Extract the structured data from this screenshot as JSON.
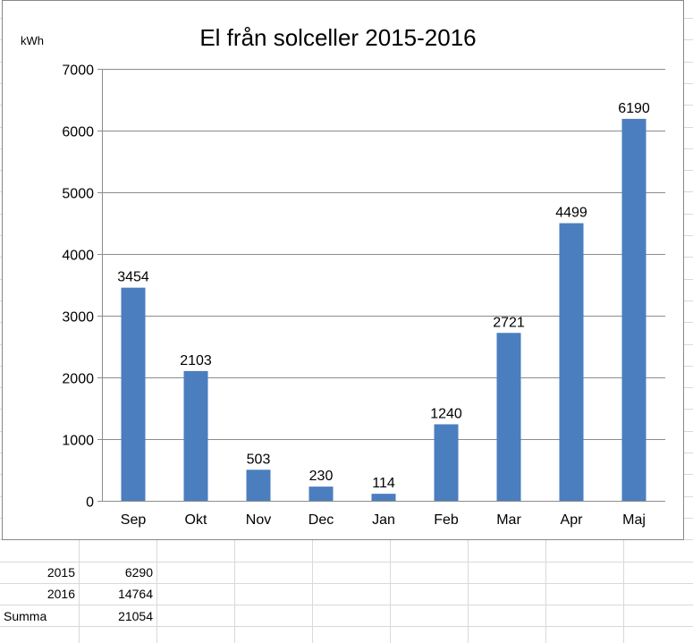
{
  "colors": {
    "bar": "#4a7ebf",
    "gridline": "#8c8c8c",
    "sheet_grid": "#d9d9d9"
  },
  "chart_data": {
    "type": "bar",
    "title": "El från solceller 2015-2016",
    "ylabel": "kWh",
    "xlabel": "",
    "categories": [
      "Sep",
      "Okt",
      "Nov",
      "Dec",
      "Jan",
      "Feb",
      "Mar",
      "Apr",
      "Maj"
    ],
    "values": [
      3454,
      2103,
      503,
      230,
      114,
      1240,
      2721,
      4499,
      6190
    ],
    "ylim": [
      0,
      7000
    ],
    "yticks": [
      0,
      1000,
      2000,
      3000,
      4000,
      5000,
      6000,
      7000
    ],
    "grid": true,
    "legend": "none"
  },
  "sheet": {
    "rows": [
      {
        "label": "2015",
        "value": "6290"
      },
      {
        "label": "2016",
        "value": "14764"
      },
      {
        "label": "Summa",
        "value": "21054"
      }
    ]
  }
}
